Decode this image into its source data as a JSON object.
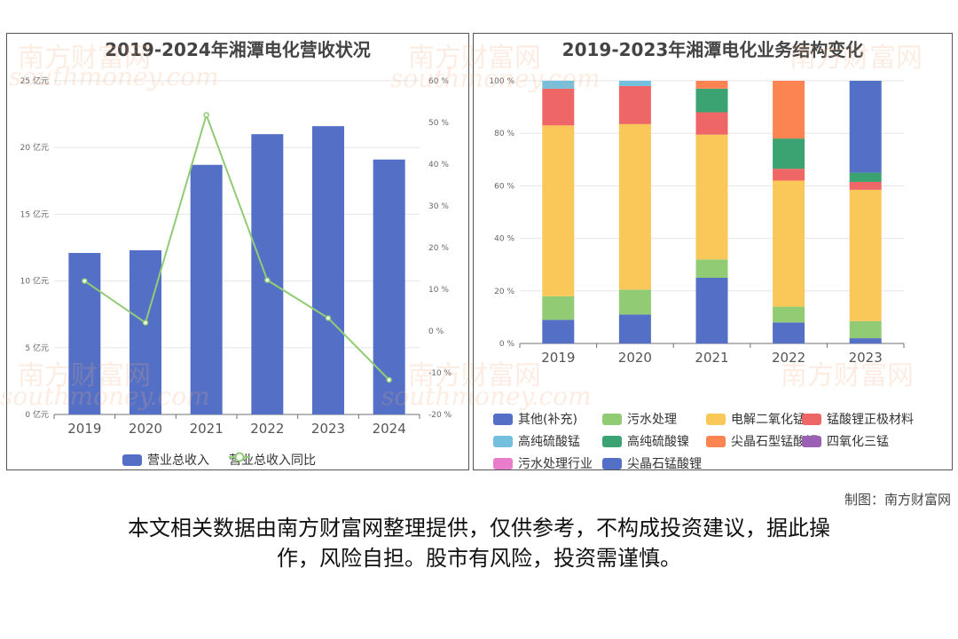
{
  "left_chart": {
    "title": "2019-2024年湘潭电化营收状况",
    "legend": {
      "bar": "营业总收入",
      "line": "营业总收入同比"
    }
  },
  "right_chart": {
    "title": "2019-2023年湘潭电化业务结构变化"
  },
  "footer": {
    "credit": "制图：南方财富网",
    "disclaimer_line1": "本文相关数据由南方财富网整理提供，仅供参考，不构成投资建议，据此操",
    "disclaimer_line2": "作，风险自担。股市有风险，投资需谨慎。"
  },
  "watermark": {
    "cn": "南方财富网",
    "en": "southmoney.com"
  },
  "chart_data": [
    {
      "type": "bar",
      "title": "2019-2024年湘潭电化营收状况",
      "categories": [
        "2019",
        "2020",
        "2021",
        "2022",
        "2023",
        "2024"
      ],
      "series": [
        {
          "name": "营业总收入",
          "type": "bar",
          "axis": "left",
          "color": "#5470c6",
          "values": [
            12.1,
            12.3,
            18.7,
            21.0,
            21.6,
            19.1
          ]
        },
        {
          "name": "营业总收入同比",
          "type": "line",
          "axis": "right",
          "color": "#91cc75",
          "values": [
            12.0,
            2.0,
            51.8,
            12.2,
            3.1,
            -11.7
          ]
        }
      ],
      "y_left": {
        "min": 0,
        "max": 25,
        "step": 5,
        "suffix": " 亿元"
      },
      "y_right": {
        "min": -20,
        "max": 60,
        "step": 10,
        "suffix": " %"
      },
      "legend_position": "bottom"
    },
    {
      "type": "bar",
      "stacked": true,
      "title": "2019-2023年湘潭电化业务结构变化",
      "categories": [
        "2019",
        "2020",
        "2021",
        "2022",
        "2023"
      ],
      "y": {
        "min": 0,
        "max": 100,
        "step": 20,
        "suffix": " %"
      },
      "legend_position": "bottom",
      "series": [
        {
          "name": "其他(补充)",
          "color": "#5470c6",
          "values": [
            9,
            11,
            25,
            8,
            2
          ]
        },
        {
          "name": "污水处理",
          "color": "#91cc75",
          "values": [
            9,
            9.5,
            7,
            6,
            6.5
          ]
        },
        {
          "name": "电解二氧化锰",
          "color": "#fac858",
          "values": [
            65,
            63,
            47.5,
            48,
            50
          ]
        },
        {
          "name": "锰酸锂正极材料",
          "color": "#ee6666",
          "values": [
            14,
            14.5,
            8.5,
            4.5,
            3
          ]
        },
        {
          "name": "高纯硫酸锰",
          "color": "#73c0de",
          "values": [
            3,
            2,
            0,
            0,
            0
          ]
        },
        {
          "name": "高纯硫酸镍",
          "color": "#3ba272",
          "values": [
            0,
            0,
            9,
            11.5,
            3.5
          ]
        },
        {
          "name": "尖晶石型锰酸锂",
          "color": "#fc8452",
          "values": [
            0,
            0,
            3,
            22,
            0
          ]
        },
        {
          "name": "四氧化三锰",
          "color": "#9a60b4",
          "values": [
            0,
            0,
            0,
            0,
            0
          ]
        },
        {
          "name": "污水处理行业",
          "color": "#ea7ccc",
          "values": [
            0,
            0,
            0,
            0,
            0
          ]
        },
        {
          "name": "尖晶石锰酸锂",
          "color": "#5470c6",
          "values": [
            0,
            0,
            0,
            0,
            35
          ]
        }
      ]
    }
  ]
}
